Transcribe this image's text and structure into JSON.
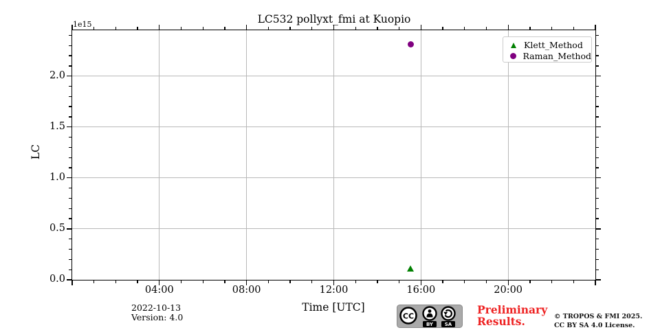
{
  "title": "LC532 pollyxt_fmi at Kuopio",
  "offset_text": "1e15",
  "footer": {
    "date": "2022-10-13",
    "version": "Version: 4.0",
    "preliminary_line1": "Preliminary",
    "preliminary_line2": "Results.",
    "copyright_line1": "© TROPOS & FMI 2025.",
    "copyright_line2": "CC BY SA 4.0 License.",
    "cc_badge": {
      "cc": "CC",
      "by": "BY",
      "sa": "SA"
    }
  },
  "chart_data": {
    "type": "scatter",
    "title": "LC532 pollyxt_fmi at Kuopio",
    "xlabel": "Time [UTC]",
    "ylabel": "LC",
    "y_offset_label": "1e15",
    "grid": true,
    "x_axis": {
      "range_hours": [
        0,
        24
      ],
      "major_tick_hours": [
        0,
        4,
        8,
        12,
        16,
        20,
        24
      ],
      "labeled_tick_hours": [
        4,
        8,
        12,
        16,
        20
      ],
      "labeled_tick_labels": [
        "04:00",
        "08:00",
        "12:00",
        "16:00",
        "20:00"
      ],
      "minor_step_hours": 1
    },
    "y_axis": {
      "range_e15": [
        0,
        2.45
      ],
      "major_ticks_e15": [
        0.0,
        0.5,
        1.0,
        1.5,
        2.0
      ],
      "major_tick_labels": [
        "0.0",
        "0.5",
        "1.0",
        "1.5",
        "2.0"
      ],
      "minor_step_e15": 0.1
    },
    "legend": {
      "position": "upper right",
      "entries": [
        {
          "label": "Klett_Method",
          "marker": "triangle",
          "color": "#008000"
        },
        {
          "label": "Raman_Method",
          "marker": "circle",
          "color": "#800080"
        }
      ]
    },
    "series": [
      {
        "name": "Klett_Method",
        "marker": "triangle",
        "color": "#008000",
        "points": [
          {
            "time_utc": "~15:30",
            "hour": 15.52,
            "value_e15": 0.11
          }
        ]
      },
      {
        "name": "Raman_Method",
        "marker": "circle",
        "color": "#800080",
        "points": [
          {
            "time_utc": "~15:30",
            "hour": 15.52,
            "value_e15": 2.31
          }
        ]
      }
    ]
  }
}
